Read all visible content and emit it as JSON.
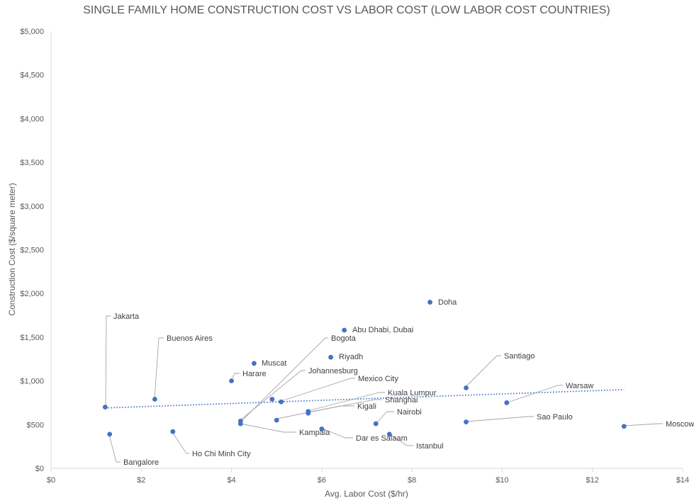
{
  "chart_data": {
    "type": "scatter",
    "title": "SINGLE FAMILY HOME CONSTRUCTION COST VS LABOR COST (LOW LABOR COST COUNTRIES)",
    "xlabel": "Avg. Labor Cost ($/hr)",
    "ylabel": "Construction Cost ($/square meter)",
    "xlim": [
      0,
      14
    ],
    "ylim": [
      0,
      5000
    ],
    "x_ticks": [
      0,
      2,
      4,
      6,
      8,
      10,
      12,
      14
    ],
    "y_ticks": [
      0,
      500,
      1000,
      1500,
      2000,
      2500,
      3000,
      3500,
      4000,
      4500,
      5000
    ],
    "x_tick_labels": [
      "$0",
      "$2",
      "$4",
      "$6",
      "$8",
      "$10",
      "$12",
      "$14"
    ],
    "y_tick_labels": [
      "$0",
      "$500",
      "$1,000",
      "$1,500",
      "$2,000",
      "$2,500",
      "$3,000",
      "$3,500",
      "$4,000",
      "$4,500",
      "$5,000"
    ],
    "grid": false,
    "legend": "none",
    "trendline": {
      "type": "linear",
      "style": "dotted",
      "x": [
        1.2,
        12.7
      ],
      "y": [
        690,
        900
      ]
    },
    "colors": {
      "marker": "#4472C4",
      "trendline": "#4472C4",
      "leader": "#A6A6A6"
    },
    "points": [
      {
        "label": "Jakarta",
        "x": 1.2,
        "y": 700
      },
      {
        "label": "Bangalore",
        "x": 1.3,
        "y": 390
      },
      {
        "label": "Buenos Aires",
        "x": 2.3,
        "y": 790
      },
      {
        "label": "Ho Chi Minh City",
        "x": 2.7,
        "y": 420
      },
      {
        "label": "Harare",
        "x": 4.0,
        "y": 1000
      },
      {
        "label": "Bogota",
        "x": 4.2,
        "y": 540
      },
      {
        "label": "Kampala",
        "x": 4.2,
        "y": 510
      },
      {
        "label": "Muscat",
        "x": 4.5,
        "y": 1200
      },
      {
        "label": "Johannesburg",
        "x": 4.9,
        "y": 790
      },
      {
        "label": "Kigali",
        "x": 5.0,
        "y": 550
      },
      {
        "label": "Mexico City",
        "x": 5.1,
        "y": 760
      },
      {
        "label": "Kuala Lumpur",
        "x": 5.7,
        "y": 650
      },
      {
        "label": "Shanghai",
        "x": 5.7,
        "y": 630
      },
      {
        "label": "Dar es Salaam",
        "x": 6.0,
        "y": 450
      },
      {
        "label": "Riyadh",
        "x": 6.2,
        "y": 1270
      },
      {
        "label": "Abu Dhabi, Dubai",
        "x": 6.5,
        "y": 1580
      },
      {
        "label": "Nairobi",
        "x": 7.2,
        "y": 510
      },
      {
        "label": "Istanbul",
        "x": 7.5,
        "y": 390
      },
      {
        "label": "Doha",
        "x": 8.4,
        "y": 1900
      },
      {
        "label": "Santiago",
        "x": 9.2,
        "y": 920
      },
      {
        "label": "Sao Paulo",
        "x": 9.2,
        "y": 530
      },
      {
        "label": "Warsaw",
        "x": 10.1,
        "y": 750
      },
      {
        "label": "Moscow",
        "x": 12.7,
        "y": 480
      }
    ]
  }
}
